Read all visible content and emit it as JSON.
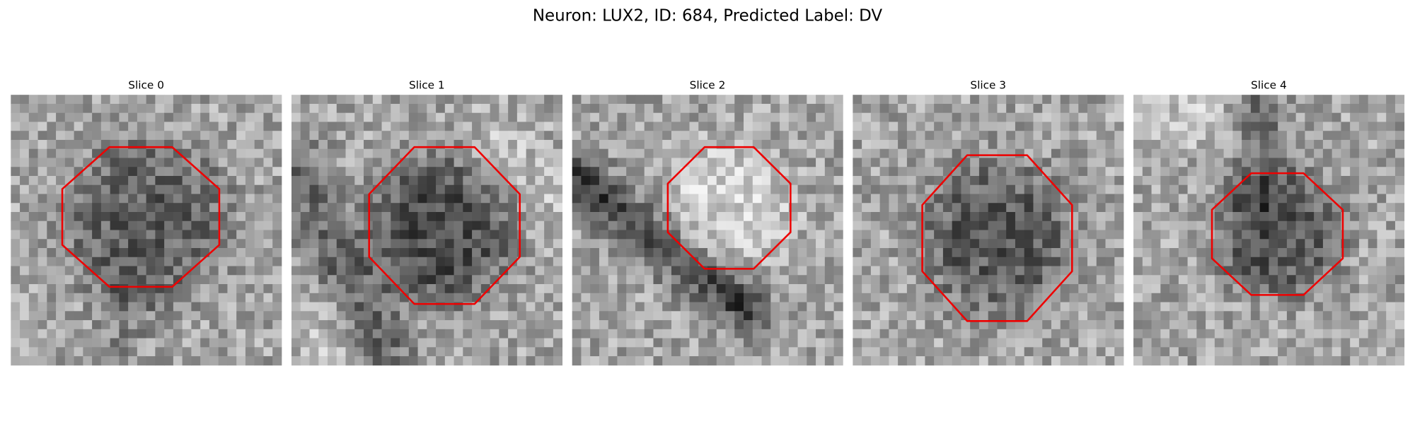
{
  "figure": {
    "title": "Neuron: LUX2, ID: 684, Predicted Label: DV",
    "panels": [
      {
        "label": "Slice 0"
      },
      {
        "label": "Slice 1"
      },
      {
        "label": "Slice 2"
      },
      {
        "label": "Slice 3"
      },
      {
        "label": "Slice 4"
      }
    ]
  }
}
